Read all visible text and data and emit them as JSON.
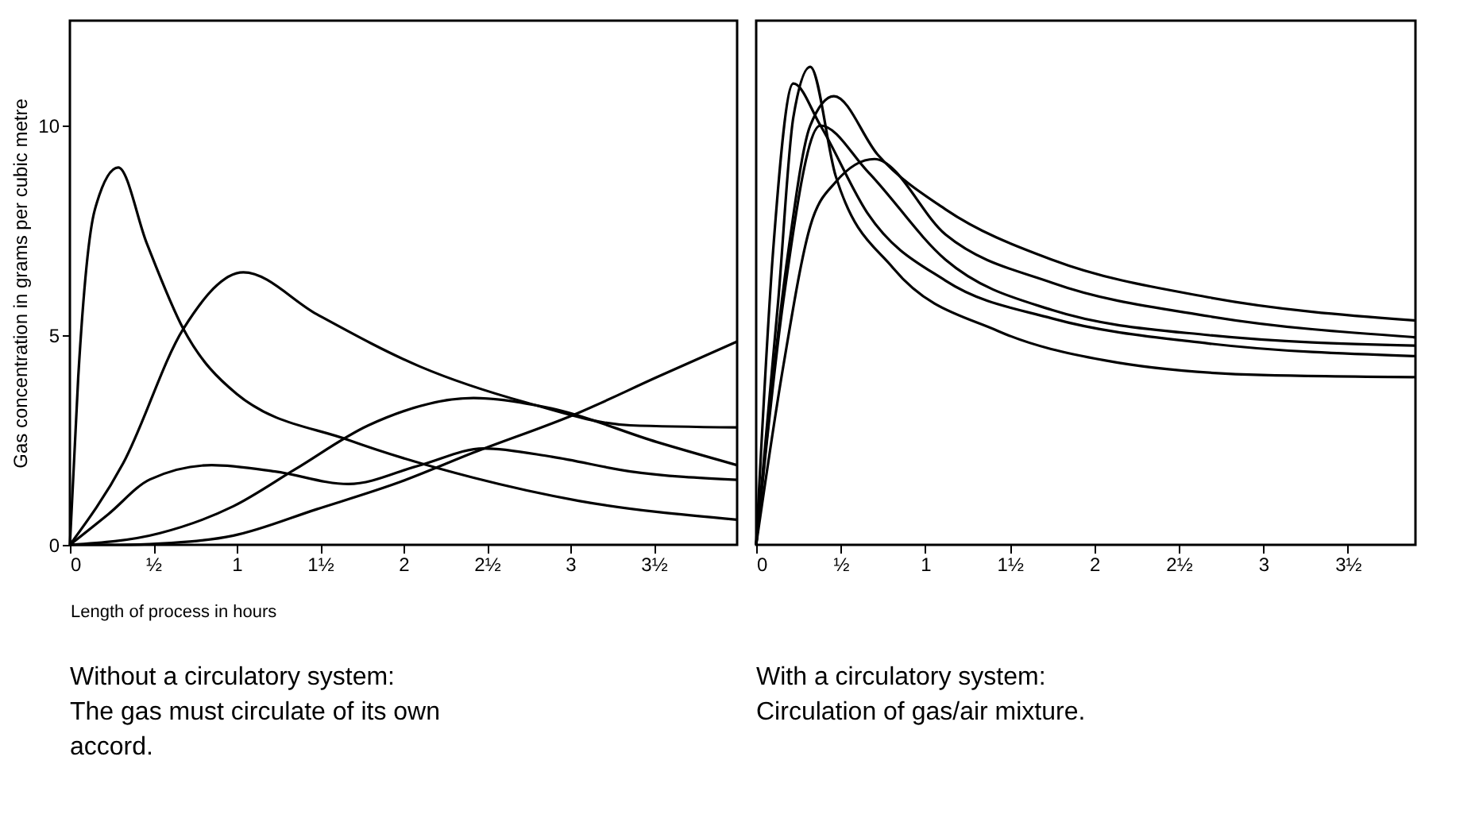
{
  "chart_data": [
    {
      "type": "line",
      "ylabel": "Gas concentration in grams per cubic metre",
      "xlabel": "Length of process in hours",
      "xlim": [
        0,
        4
      ],
      "ylim": [
        0,
        12.5
      ],
      "xticks": [
        0,
        {
          "value": 0.5,
          "label": "½"
        },
        1,
        {
          "value": 1.5,
          "label": "1½"
        },
        2,
        {
          "value": 2.5,
          "label": "2½"
        },
        3,
        {
          "value": 3.5,
          "label": "3½"
        }
      ],
      "yticks": [
        0,
        5,
        10
      ],
      "grid": false,
      "annotations": [
        "Without a circulatory system:",
        "The gas must circulate of its own",
        "accord."
      ],
      "series": [
        {
          "color": "#000000",
          "x": [
            0,
            0.05,
            0.15,
            0.29,
            0.46,
            0.68,
            1.0,
            1.67,
            2.42,
            3.05,
            4.0
          ],
          "values": [
            0,
            4,
            8,
            9.0,
            7.2,
            5.15,
            3.6,
            2.5,
            1.6,
            1.05,
            0.6
          ]
        },
        {
          "color": "#000000",
          "x": [
            0,
            0.32,
            0.68,
            1.04,
            1.48,
            2.1,
            2.73,
            3.36,
            4.0
          ],
          "values": [
            0,
            1.95,
            5.15,
            6.5,
            5.5,
            4.25,
            3.4,
            2.85,
            2.8
          ]
        },
        {
          "color": "#000000",
          "x": [
            0,
            0.23,
            0.48,
            0.85,
            1.23,
            1.67,
            2.1,
            2.48,
            2.89,
            3.36,
            4.0
          ],
          "values": [
            0,
            0.73,
            1.56,
            1.9,
            1.75,
            1.45,
            1.9,
            2.3,
            2.1,
            1.75,
            1.55
          ]
        },
        {
          "color": "#000000",
          "x": [
            0,
            0.54,
            0.98,
            1.35,
            1.79,
            2.42,
            2.89,
            3.52,
            4.0
          ],
          "values": [
            0,
            0.28,
            0.92,
            1.8,
            2.85,
            3.5,
            3.25,
            2.45,
            1.9
          ]
        },
        {
          "color": "#000000",
          "x": [
            0,
            0.3,
            0.54,
            0.98,
            1.48,
            1.98,
            2.42,
            3.05,
            3.52,
            4.0
          ],
          "values": [
            0,
            0,
            0.03,
            0.22,
            0.85,
            1.5,
            2.2,
            3.15,
            4.0,
            4.85
          ]
        }
      ]
    },
    {
      "type": "line",
      "xlim": [
        0,
        3.9
      ],
      "ylim": [
        0,
        12.5
      ],
      "xticks": [
        0,
        {
          "value": 0.5,
          "label": "½"
        },
        1,
        {
          "value": 1.5,
          "label": "1½"
        },
        2,
        {
          "value": 2.5,
          "label": "2½"
        },
        3,
        {
          "value": 3.5,
          "label": "3½"
        }
      ],
      "tick_labels": "x",
      "grid": false,
      "annotations": [
        "With a circulatory system:",
        "Circulation of gas/air mixture."
      ],
      "series": [
        {
          "color": "#000000",
          "x": [
            0,
            0.13,
            0.22,
            0.32,
            0.47,
            0.81,
            1.43,
            2.06,
            2.99,
            3.9
          ],
          "values": [
            0,
            5.8,
            10.2,
            11.4,
            8.8,
            6.6,
            5.1,
            4.4,
            4.05,
            4.0
          ]
        },
        {
          "color": "#000000",
          "x": [
            0,
            0.1,
            0.22,
            0.38,
            0.66,
            1.12,
            1.75,
            2.68,
            3.9
          ],
          "values": [
            0,
            7.0,
            11.0,
            10.0,
            7.9,
            6.3,
            5.4,
            4.8,
            4.5
          ]
        },
        {
          "color": "#000000",
          "x": [
            0,
            0.19,
            0.32,
            0.46,
            0.72,
            1.12,
            1.75,
            2.68,
            3.9
          ],
          "values": [
            0,
            7.0,
            10.0,
            10.7,
            9.3,
            8.0,
            6.8,
            5.9,
            5.35
          ]
        },
        {
          "color": "#000000",
          "x": [
            0,
            0.16,
            0.38,
            0.66,
            1.12,
            1.75,
            2.68,
            3.9
          ],
          "values": [
            0,
            5.8,
            10.0,
            8.9,
            6.8,
            5.6,
            5.0,
            4.75
          ]
        },
        {
          "color": "#000000",
          "x": [
            0,
            0.16,
            0.32,
            0.47,
            0.7,
            1.12,
            1.75,
            2.68,
            3.9
          ],
          "values": [
            0,
            4.25,
            7.6,
            8.65,
            9.2,
            7.4,
            6.25,
            5.45,
            4.95
          ]
        }
      ]
    }
  ]
}
